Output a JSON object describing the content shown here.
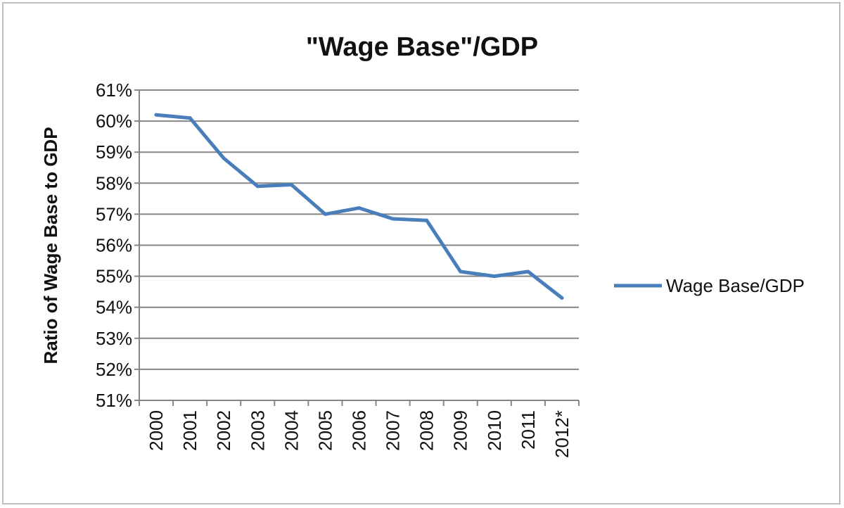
{
  "chart_data": {
    "type": "line",
    "title": "\"Wage Base\"/GDP",
    "xlabel": "",
    "ylabel": "Ratio of Wage Base to GDP",
    "categories": [
      "2000",
      "2001",
      "2002",
      "2003",
      "2004",
      "2005",
      "2006",
      "2007",
      "2008",
      "2009",
      "2010",
      "2011",
      "2012*"
    ],
    "series": [
      {
        "name": "Wage Base/GDP",
        "color": "#4a7ebb",
        "values": [
          60.2,
          60.1,
          58.8,
          57.9,
          57.95,
          57.0,
          57.2,
          56.85,
          56.8,
          55.15,
          55.0,
          55.15,
          54.3
        ]
      }
    ],
    "ylim": [
      51,
      61
    ],
    "yticks": [
      "51%",
      "52%",
      "53%",
      "54%",
      "55%",
      "56%",
      "57%",
      "58%",
      "59%",
      "60%",
      "61%"
    ],
    "grid": "horizontal",
    "legend_position": "right"
  }
}
